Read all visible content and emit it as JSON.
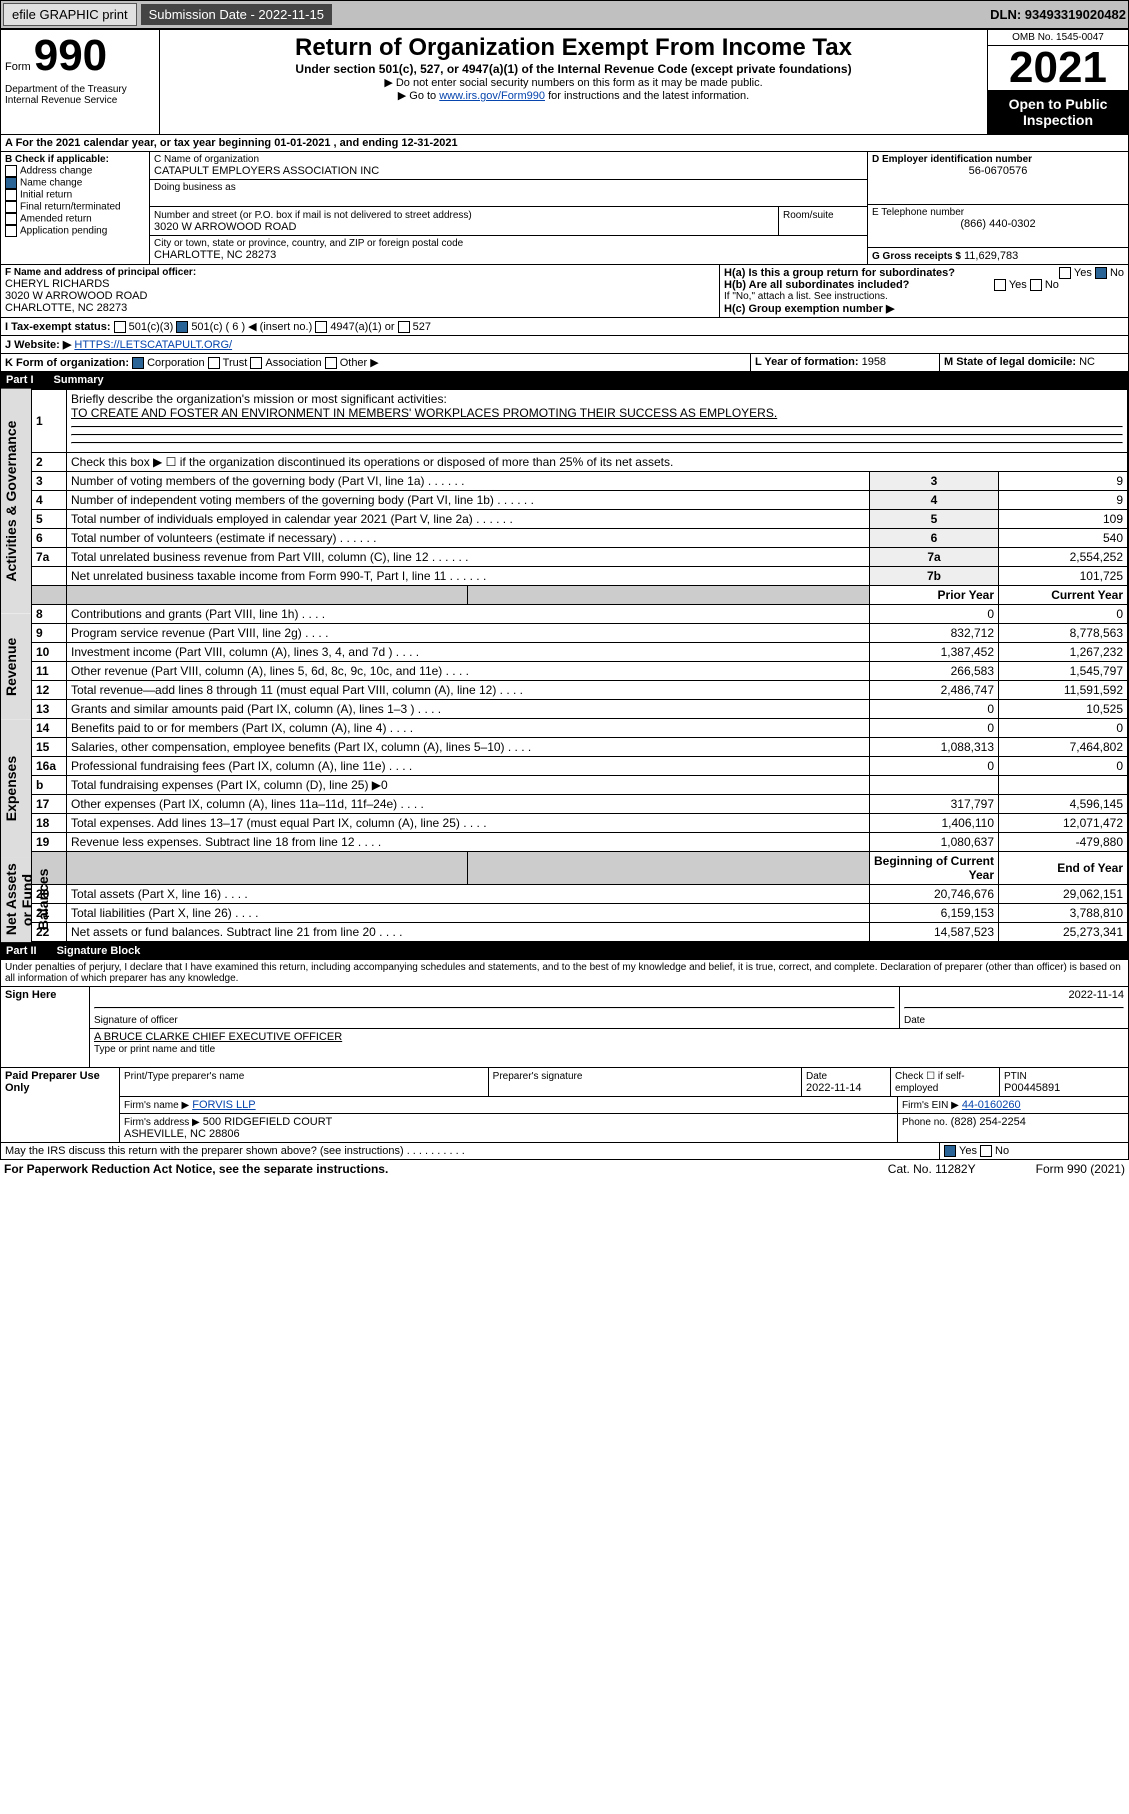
{
  "top": {
    "efile": "efile GRAPHIC print",
    "sub_label": "Submission Date - 2022-11-15",
    "dln": "DLN: 93493319020482"
  },
  "hdr": {
    "form": "Form",
    "num": "990",
    "dept": "Department of the Treasury Internal Revenue Service",
    "title": "Return of Organization Exempt From Income Tax",
    "sub1": "Under section 501(c), 527, or 4947(a)(1) of the Internal Revenue Code (except private foundations)",
    "sub2": "▶ Do not enter social security numbers on this form as it may be made public.",
    "sub3_pre": "▶ Go to ",
    "sub3_link": "www.irs.gov/Form990",
    "sub3_post": " for instructions and the latest information.",
    "omb": "OMB No. 1545-0047",
    "year": "2021",
    "open": "Open to Public Inspection"
  },
  "a": {
    "a_line": "A For the 2021 calendar year, or tax year beginning 01-01-2021  , and ending 12-31-2021"
  },
  "b": {
    "label": "B Check if applicable:",
    "addr": "Address change",
    "name": "Name change",
    "init": "Initial return",
    "final": "Final return/terminated",
    "amend": "Amended return",
    "app": "Application pending"
  },
  "c": {
    "name_label": "C Name of organization",
    "name": "CATAPULT EMPLOYERS ASSOCIATION INC",
    "dba_label": "Doing business as",
    "addr_label": "Number and street (or P.O. box if mail is not delivered to street address)",
    "room_label": "Room/suite",
    "addr": "3020 W ARROWOOD ROAD",
    "city_label": "City or town, state or province, country, and ZIP or foreign postal code",
    "city": "CHARLOTTE, NC  28273"
  },
  "d": {
    "label": "D Employer identification number",
    "val": "56-0670576"
  },
  "e": {
    "label": "E Telephone number",
    "val": "(866) 440-0302"
  },
  "g": {
    "label": "G Gross receipts $",
    "val": "11,629,783"
  },
  "f": {
    "label": "F Name and address of principal officer:",
    "name": "CHERYL RICHARDS",
    "addr": "3020 W ARROWOOD ROAD",
    "city": "CHARLOTTE, NC  28273"
  },
  "h": {
    "a": "H(a)  Is this a group return for subordinates?",
    "b": "H(b)  Are all subordinates included?",
    "note": "If \"No,\" attach a list. See instructions.",
    "c": "H(c)  Group exemption number ▶",
    "yes": "Yes",
    "no": "No"
  },
  "i": {
    "label": "I  Tax-exempt status:",
    "c3": "501(c)(3)",
    "c": "501(c) ( 6 ) ◀ (insert no.)",
    "a4947": "4947(a)(1) or",
    "s527": "527"
  },
  "j": {
    "label": "J  Website: ▶",
    "val": "HTTPS://LETSCATAPULT.ORG/"
  },
  "k": {
    "label": "K Form of organization:",
    "corp": "Corporation",
    "trust": "Trust",
    "assoc": "Association",
    "other": "Other ▶"
  },
  "l": {
    "label": "L Year of formation:",
    "val": "1958"
  },
  "m": {
    "label": "M State of legal domicile:",
    "val": "NC"
  },
  "part1": {
    "num": "Part I",
    "title": "Summary"
  },
  "s1": {
    "q1": "Briefly describe the organization's mission or most significant activities:",
    "a1": "TO CREATE AND FOSTER AN ENVIRONMENT IN MEMBERS' WORKPLACES PROMOTING THEIR SUCCESS AS EMPLOYERS.",
    "q2": "Check this box ▶ ☐ if the organization discontinued its operations or disposed of more than 25% of its net assets.",
    "lines": [
      {
        "n": "3",
        "t": "Number of voting members of the governing body (Part VI, line 1a)",
        "box": "3",
        "val": "9"
      },
      {
        "n": "4",
        "t": "Number of independent voting members of the governing body (Part VI, line 1b)",
        "box": "4",
        "val": "9"
      },
      {
        "n": "5",
        "t": "Total number of individuals employed in calendar year 2021 (Part V, line 2a)",
        "box": "5",
        "val": "109"
      },
      {
        "n": "6",
        "t": "Total number of volunteers (estimate if necessary)",
        "box": "6",
        "val": "540"
      },
      {
        "n": "7a",
        "t": "Total unrelated business revenue from Part VIII, column (C), line 12",
        "box": "7a",
        "val": "2,554,252"
      },
      {
        "n": "",
        "t": "Net unrelated business taxable income from Form 990-T, Part I, line 11",
        "box": "7b",
        "val": "101,725"
      }
    ],
    "col_prior": "Prior Year",
    "col_current": "Current Year",
    "revenue": [
      {
        "n": "8",
        "t": "Contributions and grants (Part VIII, line 1h)",
        "p": "0",
        "c": "0"
      },
      {
        "n": "9",
        "t": "Program service revenue (Part VIII, line 2g)",
        "p": "832,712",
        "c": "8,778,563"
      },
      {
        "n": "10",
        "t": "Investment income (Part VIII, column (A), lines 3, 4, and 7d )",
        "p": "1,387,452",
        "c": "1,267,232"
      },
      {
        "n": "11",
        "t": "Other revenue (Part VIII, column (A), lines 5, 6d, 8c, 9c, 10c, and 11e)",
        "p": "266,583",
        "c": "1,545,797"
      },
      {
        "n": "12",
        "t": "Total revenue—add lines 8 through 11 (must equal Part VIII, column (A), line 12)",
        "p": "2,486,747",
        "c": "11,591,592"
      }
    ],
    "expenses": [
      {
        "n": "13",
        "t": "Grants and similar amounts paid (Part IX, column (A), lines 1–3 )",
        "p": "0",
        "c": "10,525"
      },
      {
        "n": "14",
        "t": "Benefits paid to or for members (Part IX, column (A), line 4)",
        "p": "0",
        "c": "0"
      },
      {
        "n": "15",
        "t": "Salaries, other compensation, employee benefits (Part IX, column (A), lines 5–10)",
        "p": "1,088,313",
        "c": "7,464,802"
      },
      {
        "n": "16a",
        "t": "Professional fundraising fees (Part IX, column (A), line 11e)",
        "p": "0",
        "c": "0"
      },
      {
        "n": "b",
        "t": "Total fundraising expenses (Part IX, column (D), line 25) ▶0",
        "p": "",
        "c": "",
        "shade": true
      },
      {
        "n": "17",
        "t": "Other expenses (Part IX, column (A), lines 11a–11d, 11f–24e)",
        "p": "317,797",
        "c": "4,596,145"
      },
      {
        "n": "18",
        "t": "Total expenses. Add lines 13–17 (must equal Part IX, column (A), line 25)",
        "p": "1,406,110",
        "c": "12,071,472"
      },
      {
        "n": "19",
        "t": "Revenue less expenses. Subtract line 18 from line 12",
        "p": "1,080,637",
        "c": "-479,880"
      }
    ],
    "col_begin": "Beginning of Current Year",
    "col_end": "End of Year",
    "net": [
      {
        "n": "20",
        "t": "Total assets (Part X, line 16)",
        "p": "20,746,676",
        "c": "29,062,151"
      },
      {
        "n": "21",
        "t": "Total liabilities (Part X, line 26)",
        "p": "6,159,153",
        "c": "3,788,810"
      },
      {
        "n": "22",
        "t": "Net assets or fund balances. Subtract line 21 from line 20",
        "p": "14,587,523",
        "c": "25,273,341"
      }
    ]
  },
  "sections": {
    "gov": "Activities & Governance",
    "rev": "Revenue",
    "exp": "Expenses",
    "net": "Net Assets or Fund Balances"
  },
  "part2": {
    "num": "Part II",
    "title": "Signature Block"
  },
  "sig": {
    "decl": "Under penalties of perjury, I declare that I have examined this return, including accompanying schedules and statements, and to the best of my knowledge and belief, it is true, correct, and complete. Declaration of preparer (other than officer) is based on all information of which preparer has any knowledge.",
    "here": "Sign Here",
    "sig_officer": "Signature of officer",
    "date": "Date",
    "date_val": "2022-11-14",
    "name": "A BRUCE CLARKE  CHIEF EXECUTIVE OFFICER",
    "name_label": "Type or print name and title"
  },
  "paid": {
    "label": "Paid Preparer Use Only",
    "pt_name_label": "Print/Type preparer's name",
    "sig_label": "Preparer's signature",
    "date_label": "Date",
    "date": "2022-11-14",
    "check_label": "Check ☐ if self-employed",
    "ptin_label": "PTIN",
    "ptin": "P00445891",
    "firm_label": "Firm's name ▶",
    "firm": "FORVIS LLP",
    "ein_label": "Firm's EIN ▶",
    "ein": "44-0160260",
    "addr_label": "Firm's address ▶",
    "addr": "500 RIDGEFIELD COURT",
    "addr2": "ASHEVILLE, NC  28806",
    "phone_label": "Phone no.",
    "phone": "(828) 254-2254"
  },
  "footer": {
    "discuss": "May the IRS discuss this return with the preparer shown above? (see instructions)",
    "paperwork": "For Paperwork Reduction Act Notice, see the separate instructions.",
    "cat": "Cat. No. 11282Y",
    "form": "Form 990 (2021)",
    "yes": "Yes",
    "no": "No"
  }
}
